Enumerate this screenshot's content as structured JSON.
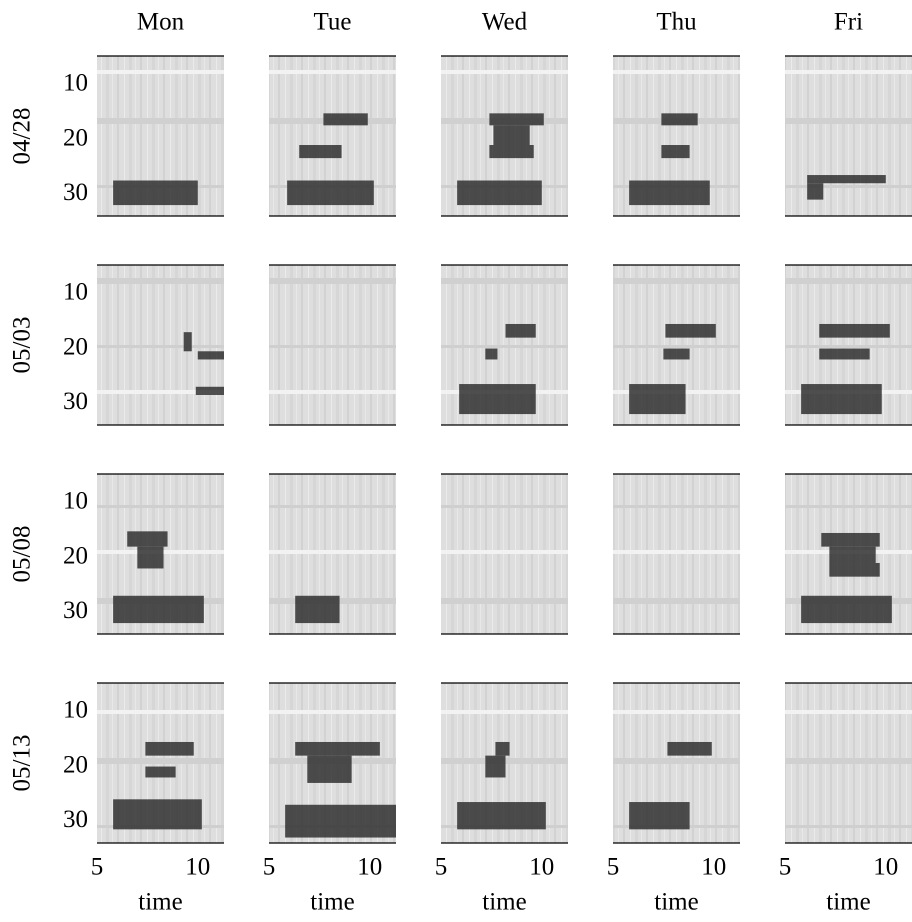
{
  "chart_data": {
    "type": "heatmap-grid",
    "columns": [
      "Mon",
      "Tue",
      "Wed",
      "Thu",
      "Fri"
    ],
    "rows": [
      "04/28",
      "05/03",
      "05/08",
      "05/13"
    ],
    "xlabel": "time",
    "xlim": [
      5,
      11.3
    ],
    "xticks": [
      5,
      10
    ],
    "ylim": [
      4.7,
      34
    ],
    "yticks": [
      10,
      20,
      30
    ],
    "y_inverted": true,
    "color": "#2a2a2a",
    "panels": [
      [
        {
          "bands": [
            [
              5.8,
              10,
              27.5,
              32
            ]
          ]
        },
        {
          "bands": [
            [
              5.9,
              10.2,
              27.5,
              32
            ],
            [
              6.5,
              8.6,
              21,
              23.4
            ],
            [
              7.7,
              9.9,
              15.2,
              17.4
            ]
          ]
        },
        {
          "bands": [
            [
              5.8,
              10,
              27.5,
              32
            ],
            [
              7.4,
              9.6,
              21,
              23.4
            ],
            [
              7.6,
              9.4,
              17.4,
              21
            ],
            [
              7.4,
              10.1,
              15.2,
              17.4
            ]
          ]
        },
        {
          "bands": [
            [
              5.8,
              9.8,
              27.5,
              32
            ],
            [
              7.4,
              8.8,
              21,
              23.4
            ],
            [
              7.4,
              9.2,
              15.2,
              17.4
            ]
          ]
        },
        {
          "bands": [
            [
              6.1,
              10,
              26.5,
              28
            ],
            [
              6.1,
              6.9,
              28,
              31
            ]
          ]
        }
      ],
      [
        {
          "bands": [
            [
              9.9,
              11.3,
              27,
              28.5
            ],
            [
              10,
              11.3,
              20.5,
              22
            ],
            [
              9.3,
              9.7,
              17,
              20.5
            ]
          ]
        },
        {
          "bands": []
        },
        {
          "bands": [
            [
              8.2,
              9.7,
              15.5,
              18
            ],
            [
              5.9,
              9.7,
              26.5,
              32
            ],
            [
              7.2,
              7.8,
              20,
              22
            ]
          ]
        },
        {
          "bands": [
            [
              7.6,
              10.1,
              15.5,
              18
            ],
            [
              7.5,
              8.8,
              20,
              22
            ],
            [
              5.8,
              8.6,
              26.5,
              32
            ]
          ]
        },
        {
          "bands": [
            [
              6.7,
              10.2,
              15.5,
              18
            ],
            [
              6.7,
              9.2,
              20,
              22
            ],
            [
              5.8,
              9.8,
              26.5,
              32
            ]
          ]
        }
      ],
      [
        {
          "bands": [
            [
              6.5,
              8.5,
              15.2,
              18
            ],
            [
              7,
              8.3,
              18,
              22
            ],
            [
              5.8,
              10.3,
              27,
              32
            ]
          ]
        },
        {
          "bands": [
            [
              6.3,
              8.5,
              27,
              32
            ]
          ]
        },
        {
          "bands": []
        },
        {
          "bands": []
        },
        {
          "bands": [
            [
              6.8,
              9.7,
              15.5,
              18
            ],
            [
              7.2,
              9.5,
              18,
              21
            ],
            [
              7.2,
              9.7,
              21,
              23.5
            ],
            [
              5.8,
              10.3,
              27,
              32
            ]
          ]
        }
      ],
      [
        {
          "bands": [
            [
              7.4,
              9.8,
              15.5,
              18
            ],
            [
              7.4,
              8.9,
              20,
              22
            ],
            [
              5.8,
              10.2,
              26,
              31.5
            ]
          ]
        },
        {
          "bands": [
            [
              6.3,
              10.5,
              15.5,
              18
            ],
            [
              6.9,
              9.1,
              18,
              23
            ],
            [
              5.8,
              11.3,
              27,
              33
            ]
          ]
        },
        {
          "bands": [
            [
              7.7,
              8.4,
              15.5,
              18
            ],
            [
              7.2,
              8.2,
              18,
              22
            ],
            [
              5.8,
              10.2,
              26.5,
              31.5
            ]
          ]
        },
        {
          "bands": [
            [
              7.7,
              9.9,
              15.5,
              18
            ],
            [
              5.8,
              8.8,
              26.5,
              31.5
            ]
          ]
        },
        {
          "bands": []
        }
      ]
    ]
  }
}
